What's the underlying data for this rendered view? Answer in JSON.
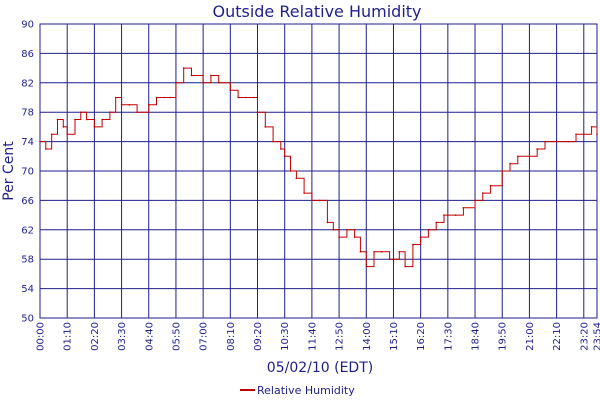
{
  "chart_data": {
    "type": "line",
    "title": "Outside Relative Humidity",
    "xlabel": "05/02/10 (EDT)",
    "ylabel": "Per Cent",
    "ylim": [
      50,
      90
    ],
    "y_ticks": [
      "50",
      "54",
      "58",
      "62",
      "66",
      "70",
      "74",
      "78",
      "82",
      "86",
      "90"
    ],
    "x_ticks": [
      "00:00",
      "01:10",
      "02:20",
      "03:30",
      "04:40",
      "05:50",
      "07:00",
      "08:10",
      "09:20",
      "10:30",
      "11:40",
      "12:50",
      "14:00",
      "15:10",
      "16:20",
      "17:30",
      "18:40",
      "19:50",
      "21:00",
      "22:10",
      "23:20",
      "23:54"
    ],
    "grid": true,
    "legend_position": "bottom",
    "line_color": "#c00000",
    "grid_color": "#1f1f8c",
    "series": [
      {
        "name": "Relative Humidity",
        "x": [
          "00:00",
          "00:15",
          "00:30",
          "00:45",
          "01:00",
          "01:10",
          "01:30",
          "01:45",
          "02:00",
          "02:20",
          "02:40",
          "03:00",
          "03:15",
          "03:30",
          "03:50",
          "04:10",
          "04:40",
          "05:00",
          "05:20",
          "05:35",
          "05:50",
          "06:10",
          "06:30",
          "07:00",
          "07:20",
          "07:40",
          "08:10",
          "08:30",
          "08:50",
          "09:10",
          "09:20",
          "09:40",
          "10:00",
          "10:20",
          "10:30",
          "10:45",
          "11:00",
          "11:20",
          "11:40",
          "12:00",
          "12:20",
          "12:35",
          "12:50",
          "13:10",
          "13:30",
          "13:45",
          "14:00",
          "14:20",
          "14:40",
          "15:00",
          "15:10",
          "15:25",
          "15:40",
          "16:00",
          "16:20",
          "16:40",
          "17:00",
          "17:20",
          "17:30",
          "17:50",
          "18:10",
          "18:40",
          "19:00",
          "19:20",
          "19:50",
          "20:10",
          "20:30",
          "21:00",
          "21:20",
          "21:40",
          "22:10",
          "22:40",
          "23:00",
          "23:20",
          "23:40",
          "23:54"
        ],
        "values": [
          74,
          73,
          75,
          77,
          76,
          75,
          77,
          78,
          77,
          76,
          77,
          78,
          80,
          79,
          79,
          78,
          79,
          80,
          80,
          80,
          82,
          84,
          83,
          82,
          83,
          82,
          81,
          80,
          80,
          80,
          78,
          76,
          74,
          73,
          72,
          70,
          69,
          67,
          66,
          66,
          63,
          62,
          61,
          62,
          61,
          59,
          57,
          59,
          59,
          58,
          58,
          59,
          57,
          60,
          61,
          62,
          63,
          64,
          64,
          64,
          65,
          66,
          67,
          68,
          70,
          71,
          72,
          72,
          73,
          74,
          74,
          74,
          75,
          75,
          76,
          75
        ]
      }
    ]
  }
}
